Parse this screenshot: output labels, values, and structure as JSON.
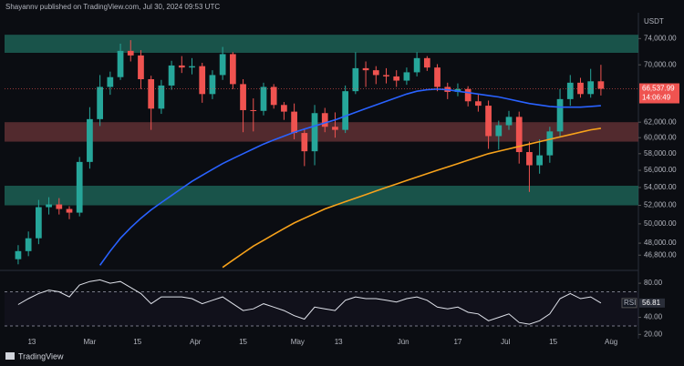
{
  "header": "Shayannv published on TradingView.com, Jul 30, 2024 09:53 UTC",
  "footer": "TradingView",
  "chart_data": {
    "type": "candlestick",
    "currency": "USDT",
    "log_scale": true,
    "xlim": [
      36,
      222
    ],
    "xticks": [
      {
        "value": 44,
        "label": "13"
      },
      {
        "value": 61,
        "label": "Mar"
      },
      {
        "value": 75,
        "label": "15"
      },
      {
        "value": 92,
        "label": "Apr"
      },
      {
        "value": 106,
        "label": "15"
      },
      {
        "value": 122,
        "label": "May"
      },
      {
        "value": 134,
        "label": "13"
      },
      {
        "value": 153,
        "label": "Jun"
      },
      {
        "value": 169,
        "label": "17"
      },
      {
        "value": 183,
        "label": "Jul"
      },
      {
        "value": 197,
        "label": "15"
      },
      {
        "value": 214,
        "label": "Aug"
      }
    ],
    "ylim": [
      45400,
      78000
    ],
    "yticks": [
      {
        "value": 74000,
        "label": "74,000.00"
      },
      {
        "value": 70000,
        "label": "70,000.00"
      },
      {
        "value": 62000,
        "label": "62,000.00"
      },
      {
        "value": 60000,
        "label": "60,000.00"
      },
      {
        "value": 58000,
        "label": "58,000.00"
      },
      {
        "value": 56000,
        "label": "56,000.00"
      },
      {
        "value": 54000,
        "label": "54,000.00"
      },
      {
        "value": 52000,
        "label": "52,000.00"
      },
      {
        "value": 50000,
        "label": "50,000.00"
      },
      {
        "value": 48000,
        "label": "48,000.00"
      },
      {
        "value": 46800,
        "label": "46,800.00"
      }
    ],
    "up_color": "#26a69a",
    "down_color": "#ef5350",
    "zones": [
      {
        "low": 71800,
        "high": 74600,
        "color": "#1f6b5e"
      },
      {
        "low": 59500,
        "high": 62000,
        "color": "#6b3438"
      },
      {
        "low": 52000,
        "high": 54200,
        "color": "#1f6b5e"
      }
    ],
    "x": [
      40,
      43,
      46,
      49,
      52,
      55,
      58,
      61,
      64,
      67,
      70,
      73,
      76,
      79,
      82,
      85,
      88,
      91,
      94,
      97,
      100,
      103,
      106,
      109,
      112,
      115,
      118,
      121,
      124,
      127,
      130,
      133,
      136,
      139,
      142,
      145,
      148,
      151,
      154,
      157,
      160,
      163,
      166,
      169,
      172,
      175,
      178,
      181,
      184,
      187,
      190,
      193,
      196,
      199,
      202,
      205,
      208,
      211
    ],
    "open": [
      46400,
      47200,
      48500,
      51800,
      52100,
      51600,
      51200,
      57000,
      62400,
      66800,
      68200,
      72100,
      71400,
      67900,
      63800,
      67000,
      69900,
      69600,
      69800,
      65800,
      68500,
      71600,
      67200,
      63600,
      63500,
      66800,
      64300,
      63400,
      60600,
      58300,
      63200,
      61400,
      61000,
      66200,
      69500,
      69200,
      68500,
      68300,
      67700,
      68900,
      71000,
      69600,
      66800,
      66100,
      66500,
      64800,
      64200,
      60200,
      61600,
      62700,
      58200,
      56600,
      57800,
      60800,
      65100,
      67400,
      65800,
      67600
    ],
    "high": [
      47800,
      49200,
      52600,
      52900,
      52800,
      51900,
      57600,
      64000,
      68500,
      69000,
      73200,
      73750,
      72200,
      68400,
      67800,
      70600,
      71300,
      71000,
      70300,
      69200,
      72700,
      71900,
      67900,
      65200,
      67400,
      67200,
      64700,
      64500,
      61200,
      64300,
      63900,
      63300,
      67000,
      71900,
      70500,
      69800,
      69500,
      69200,
      69600,
      71900,
      71300,
      70100,
      67400,
      67300,
      66900,
      65800,
      64900,
      62200,
      63500,
      63400,
      59500,
      59800,
      61400,
      66500,
      68500,
      68100,
      69400,
      70000
    ],
    "low": [
      45900,
      46700,
      47900,
      51000,
      51000,
      50500,
      50800,
      56200,
      61500,
      65700,
      67800,
      70500,
      66500,
      61000,
      63100,
      66400,
      68800,
      68600,
      64600,
      65100,
      67800,
      66500,
      60700,
      60800,
      62900,
      63800,
      62300,
      59800,
      56500,
      56600,
      60700,
      60000,
      60600,
      65800,
      66800,
      67200,
      67300,
      66800,
      67100,
      68300,
      69100,
      66200,
      65100,
      65500,
      64100,
      63400,
      58600,
      58500,
      61000,
      56800,
      53500,
      55600,
      56900,
      60000,
      64200,
      65300,
      65300,
      65600
    ],
    "close": [
      47200,
      48500,
      51800,
      52100,
      51600,
      51200,
      57000,
      62400,
      66800,
      68200,
      72100,
      71400,
      67900,
      63800,
      67000,
      69900,
      69600,
      69800,
      65800,
      68500,
      71600,
      67200,
      63600,
      63500,
      66800,
      64300,
      63400,
      60600,
      58300,
      63200,
      61400,
      61000,
      66200,
      69500,
      69200,
      68500,
      68300,
      67700,
      68900,
      71000,
      69600,
      66800,
      66100,
      66500,
      64800,
      64200,
      60200,
      61600,
      62700,
      58200,
      56600,
      57800,
      60800,
      65100,
      67400,
      65800,
      67600,
      66537.99
    ],
    "last_price_label": "66,537.99",
    "countdown": "14:06:49",
    "moving_averages": [
      {
        "color": "#2962ff",
        "values": [
          null,
          null,
          null,
          null,
          null,
          null,
          null,
          null,
          45800,
          47200,
          48500,
          49600,
          50600,
          51500,
          52300,
          53100,
          53900,
          54700,
          55400,
          56100,
          56800,
          57400,
          58000,
          58600,
          59200,
          59700,
          60200,
          60700,
          61100,
          61500,
          61900,
          62300,
          62800,
          63300,
          63800,
          64300,
          64800,
          65300,
          65800,
          66200,
          66400,
          66500,
          66400,
          66200,
          66000,
          65800,
          65600,
          65400,
          65100,
          64800,
          64500,
          64300,
          64100,
          64000,
          64000,
          64000,
          64100,
          64200
        ]
      },
      {
        "color": "#f7a21b",
        "values": [
          null,
          null,
          null,
          null,
          null,
          null,
          null,
          null,
          null,
          null,
          null,
          null,
          null,
          null,
          null,
          null,
          null,
          null,
          null,
          null,
          45600,
          46300,
          47000,
          47700,
          48300,
          48900,
          49500,
          50100,
          50600,
          51100,
          51600,
          52000,
          52400,
          52800,
          53200,
          53600,
          54000,
          54400,
          54800,
          55200,
          55600,
          56000,
          56400,
          56800,
          57200,
          57600,
          58000,
          58300,
          58600,
          58900,
          59200,
          59500,
          59800,
          60100,
          60400,
          60700,
          61000,
          61200
        ]
      }
    ],
    "rsi": {
      "name": "RSI",
      "value_label": "56.81",
      "color": "#e0e3eb",
      "ylim": [
        15,
        94
      ],
      "yticks": [
        {
          "value": 80,
          "label": "80.00"
        },
        {
          "value": 40,
          "label": "40.00"
        },
        {
          "value": 20,
          "label": "20.00"
        }
      ],
      "band": [
        30,
        70
      ],
      "values": [
        55,
        62,
        68,
        72,
        70,
        64,
        78,
        82,
        84,
        80,
        82,
        75,
        68,
        56,
        64,
        64,
        64,
        62,
        56,
        60,
        64,
        56,
        48,
        50,
        56,
        52,
        48,
        42,
        38,
        52,
        50,
        48,
        60,
        64,
        62,
        62,
        60,
        58,
        62,
        64,
        60,
        52,
        50,
        52,
        46,
        44,
        36,
        40,
        44,
        34,
        32,
        36,
        44,
        62,
        68,
        62,
        64,
        56.81
      ]
    }
  }
}
